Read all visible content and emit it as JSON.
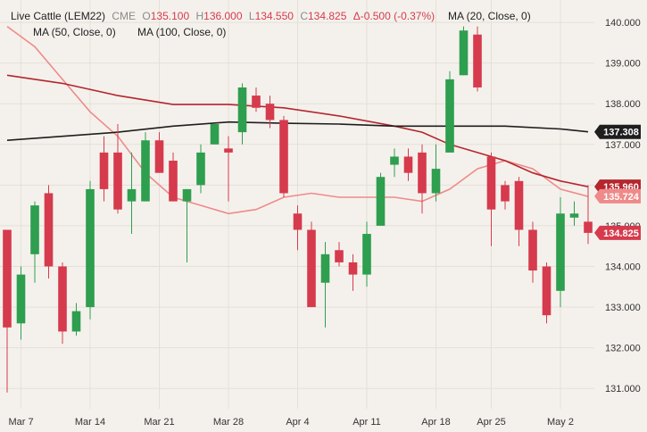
{
  "header": {
    "symbol": "Live Cattle (LEM22)",
    "exchange": "CME",
    "open_label": "O",
    "open": "135.100",
    "high_label": "H",
    "high": "136.000",
    "low_label": "L",
    "low": "134.550",
    "close_label": "C",
    "close": "134.825",
    "change": "Δ-0.500 (-0.37%)",
    "ma20_label": "MA (20, Close, 0)",
    "ma50_label": "MA (50, Close, 0)",
    "ma100_label": "MA (100, Close, 0)"
  },
  "colors": {
    "background": "#f4f1ec",
    "up": "#2e9e4f",
    "down": "#d63a4d",
    "ma20": "#ef8a8a",
    "ma50": "#b5262e",
    "ma100": "#1e1e1e",
    "grid": "#e4dfd8"
  },
  "price_labels": [
    {
      "value": "137.308",
      "color": "#1e1e1e"
    },
    {
      "value": "135.960",
      "color": "#b5262e"
    },
    {
      "value": "135.724",
      "color": "#ef8a8a"
    },
    {
      "value": "134.825",
      "color": "#d63a4d"
    }
  ],
  "chart_data": {
    "type": "candlestick",
    "y_ticks": [
      "140.000",
      "139.000",
      "138.000",
      "137.000",
      "136.000",
      "135.000",
      "134.000",
      "133.000",
      "132.000",
      "131.000"
    ],
    "ylim": [
      130.5,
      140.55
    ],
    "x_ticks": [
      {
        "label": "Mar 7",
        "index": 1
      },
      {
        "label": "Mar 14",
        "index": 6
      },
      {
        "label": "Mar 21",
        "index": 11
      },
      {
        "label": "Mar 28",
        "index": 16
      },
      {
        "label": "Apr 4",
        "index": 21
      },
      {
        "label": "Apr 11",
        "index": 26
      },
      {
        "label": "Apr 18",
        "index": 31
      },
      {
        "label": "Apr 25",
        "index": 35
      },
      {
        "label": "May 2",
        "index": 40
      }
    ],
    "candles": [
      {
        "o": 134.9,
        "h": 134.9,
        "l": 130.9,
        "c": 132.5
      },
      {
        "o": 132.6,
        "h": 134.0,
        "l": 132.2,
        "c": 133.8
      },
      {
        "o": 134.3,
        "h": 135.6,
        "l": 133.6,
        "c": 135.5
      },
      {
        "o": 135.8,
        "h": 136.0,
        "l": 133.7,
        "c": 134.0
      },
      {
        "o": 134.0,
        "h": 134.1,
        "l": 132.1,
        "c": 132.4
      },
      {
        "o": 132.4,
        "h": 133.1,
        "l": 132.3,
        "c": 132.9
      },
      {
        "o": 133.0,
        "h": 136.1,
        "l": 132.7,
        "c": 135.9
      },
      {
        "o": 136.8,
        "h": 137.2,
        "l": 135.6,
        "c": 135.9
      },
      {
        "o": 136.8,
        "h": 137.5,
        "l": 135.3,
        "c": 135.4
      },
      {
        "o": 135.6,
        "h": 136.8,
        "l": 134.8,
        "c": 135.9
      },
      {
        "o": 135.6,
        "h": 137.3,
        "l": 135.6,
        "c": 137.1
      },
      {
        "o": 137.1,
        "h": 137.3,
        "l": 136.3,
        "c": 136.3
      },
      {
        "o": 136.6,
        "h": 136.8,
        "l": 135.6,
        "c": 135.6
      },
      {
        "o": 135.6,
        "h": 135.9,
        "l": 134.1,
        "c": 135.9
      },
      {
        "o": 136.0,
        "h": 137.0,
        "l": 135.8,
        "c": 136.8
      },
      {
        "o": 137.0,
        "h": 137.5,
        "l": 137.0,
        "c": 137.5
      },
      {
        "o": 136.9,
        "h": 137.2,
        "l": 135.6,
        "c": 136.8
      },
      {
        "o": 137.3,
        "h": 138.5,
        "l": 137.0,
        "c": 138.4
      },
      {
        "o": 138.2,
        "h": 138.4,
        "l": 137.8,
        "c": 137.9
      },
      {
        "o": 138.0,
        "h": 138.2,
        "l": 137.4,
        "c": 137.6
      },
      {
        "o": 137.6,
        "h": 137.7,
        "l": 135.7,
        "c": 135.8
      },
      {
        "o": 135.3,
        "h": 135.5,
        "l": 134.4,
        "c": 134.9
      },
      {
        "o": 134.9,
        "h": 135.1,
        "l": 133.0,
        "c": 133.0
      },
      {
        "o": 133.6,
        "h": 134.6,
        "l": 132.5,
        "c": 134.3
      },
      {
        "o": 134.4,
        "h": 134.6,
        "l": 134.0,
        "c": 134.1
      },
      {
        "o": 134.1,
        "h": 134.3,
        "l": 133.4,
        "c": 133.8
      },
      {
        "o": 133.8,
        "h": 135.1,
        "l": 133.5,
        "c": 134.8
      },
      {
        "o": 135.0,
        "h": 136.3,
        "l": 135.0,
        "c": 136.2
      },
      {
        "o": 136.5,
        "h": 136.9,
        "l": 136.2,
        "c": 136.7
      },
      {
        "o": 136.7,
        "h": 136.9,
        "l": 136.1,
        "c": 136.3
      },
      {
        "o": 136.8,
        "h": 137.0,
        "l": 135.3,
        "c": 135.8
      },
      {
        "o": 135.8,
        "h": 137.0,
        "l": 135.6,
        "c": 136.4
      },
      {
        "o": 136.8,
        "h": 138.8,
        "l": 136.8,
        "c": 138.6
      },
      {
        "o": 138.7,
        "h": 139.9,
        "l": 138.7,
        "c": 139.8
      },
      {
        "o": 139.7,
        "h": 139.9,
        "l": 138.3,
        "c": 138.4
      },
      {
        "o": 136.7,
        "h": 136.8,
        "l": 134.5,
        "c": 135.4
      },
      {
        "o": 136.0,
        "h": 136.1,
        "l": 135.4,
        "c": 135.6
      },
      {
        "o": 136.1,
        "h": 136.2,
        "l": 134.5,
        "c": 134.9
      },
      {
        "o": 134.9,
        "h": 135.1,
        "l": 133.6,
        "c": 133.9
      },
      {
        "o": 134.0,
        "h": 134.1,
        "l": 132.6,
        "c": 132.8
      },
      {
        "o": 133.4,
        "h": 135.7,
        "l": 133.0,
        "c": 135.3
      },
      {
        "o": 135.2,
        "h": 135.6,
        "l": 135.0,
        "c": 135.3
      },
      {
        "o": 135.1,
        "h": 136.0,
        "l": 134.55,
        "c": 134.825
      }
    ],
    "series": [
      {
        "name": "MA (20, Close, 0)",
        "points": [
          [
            0,
            139.9
          ],
          [
            2,
            139.4
          ],
          [
            4,
            138.6
          ],
          [
            6,
            137.8
          ],
          [
            8,
            137.2
          ],
          [
            10,
            136.3
          ],
          [
            12,
            135.7
          ],
          [
            14,
            135.5
          ],
          [
            16,
            135.3
          ],
          [
            18,
            135.4
          ],
          [
            20,
            135.7
          ],
          [
            22,
            135.8
          ],
          [
            24,
            135.7
          ],
          [
            26,
            135.7
          ],
          [
            28,
            135.7
          ],
          [
            30,
            135.6
          ],
          [
            32,
            135.9
          ],
          [
            34,
            136.4
          ],
          [
            36,
            136.6
          ],
          [
            38,
            136.4
          ],
          [
            40,
            135.9
          ],
          [
            42,
            135.72
          ]
        ]
      },
      {
        "name": "MA (50, Close, 0)",
        "points": [
          [
            0,
            138.7
          ],
          [
            4,
            138.5
          ],
          [
            8,
            138.2
          ],
          [
            12,
            137.98
          ],
          [
            16,
            137.98
          ],
          [
            20,
            137.9
          ],
          [
            24,
            137.7
          ],
          [
            28,
            137.45
          ],
          [
            30,
            137.3
          ],
          [
            32,
            137.0
          ],
          [
            34,
            136.8
          ],
          [
            36,
            136.6
          ],
          [
            38,
            136.3
          ],
          [
            40,
            136.1
          ],
          [
            42,
            135.96
          ]
        ]
      },
      {
        "name": "MA (100, Close, 0)",
        "points": [
          [
            0,
            137.1
          ],
          [
            4,
            137.2
          ],
          [
            8,
            137.3
          ],
          [
            12,
            137.45
          ],
          [
            16,
            137.55
          ],
          [
            20,
            137.52
          ],
          [
            24,
            137.5
          ],
          [
            28,
            137.45
          ],
          [
            32,
            137.45
          ],
          [
            36,
            137.45
          ],
          [
            40,
            137.38
          ],
          [
            42,
            137.31
          ]
        ]
      }
    ]
  }
}
